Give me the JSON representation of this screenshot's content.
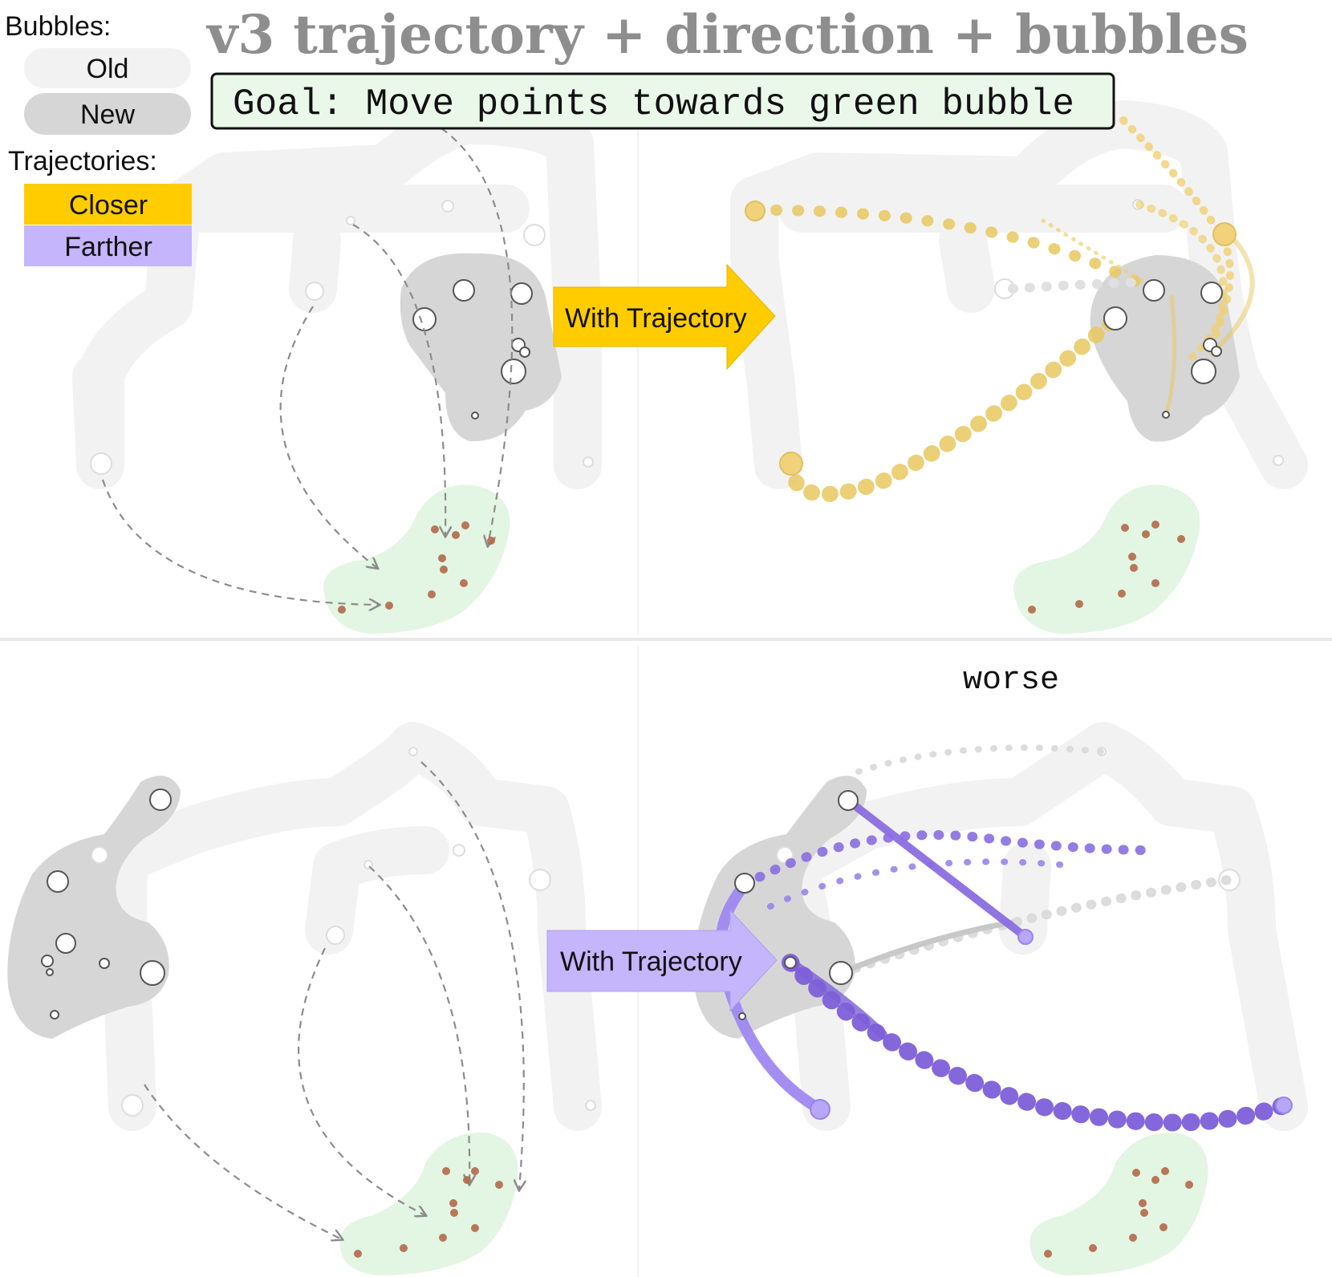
{
  "title": "v3 trajectory + direction + bubbles",
  "goal": "Goal: Move points towards green bubble",
  "legend": {
    "bubbles_heading": "Bubbles:",
    "old_label": "Old",
    "new_label": "New",
    "trajectories_heading": "Trajectories:",
    "closer_label": "Closer",
    "farther_label": "Farther"
  },
  "panels": {
    "top_arrow_label": "With Trajectory",
    "bottom_arrow_label": "With Trajectory",
    "bottom_right_note": "worse"
  },
  "colors": {
    "closer": "#ffcc00",
    "closer_trail": "#e8c860",
    "farther": "#c4b5fd",
    "farther_trail": "#8a6ee0",
    "old_bubble": "#f2f2f2",
    "new_bubble": "#d6d6d6",
    "goal_bubble": "#e3f5e3",
    "goal_box_fill": "#eaf8ea",
    "dot_brown": "#b36a4a",
    "dashed_line": "#8c8c8c"
  }
}
